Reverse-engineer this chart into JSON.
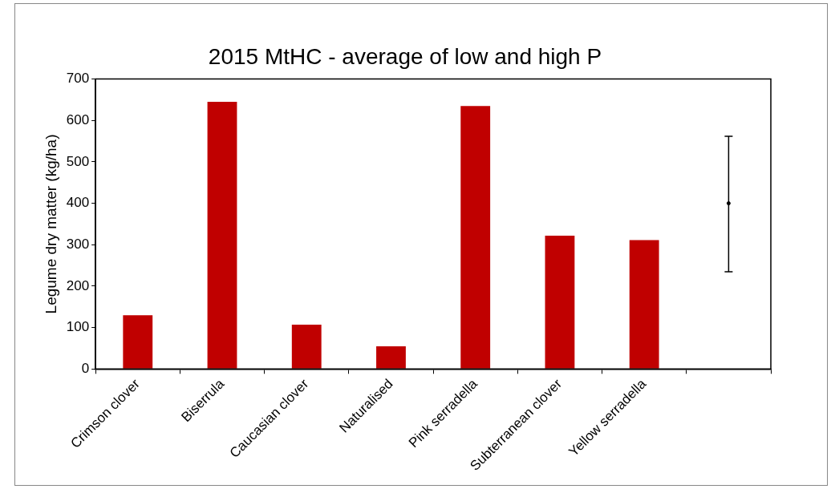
{
  "chart_data": {
    "type": "bar",
    "title": "2015 MtHC - average of low and high P",
    "ylabel": "Legume dry matter (kg/ha)",
    "categories": [
      "Crimson clover",
      "Biserrula",
      "Caucasian clover",
      "Naturalised",
      "Pink serradella",
      "Subterranean clover",
      "Yellow serradella",
      null
    ],
    "series": [
      {
        "color": "#c00000",
        "values": [
          130,
          645,
          107,
          55,
          635,
          322,
          311,
          null
        ]
      },
      {
        "type": "scatter",
        "color": "#000000",
        "values": [
          null,
          null,
          null,
          null,
          null,
          null,
          null,
          400
        ],
        "errors": [
          null,
          null,
          null,
          null,
          null,
          null,
          null,
          [
            235,
            562
          ]
        ]
      }
    ],
    "ylim": [
      0,
      700
    ],
    "yticks": [
      0,
      100,
      200,
      300,
      400,
      500,
      600,
      700
    ],
    "grid": false,
    "legend": false
  }
}
